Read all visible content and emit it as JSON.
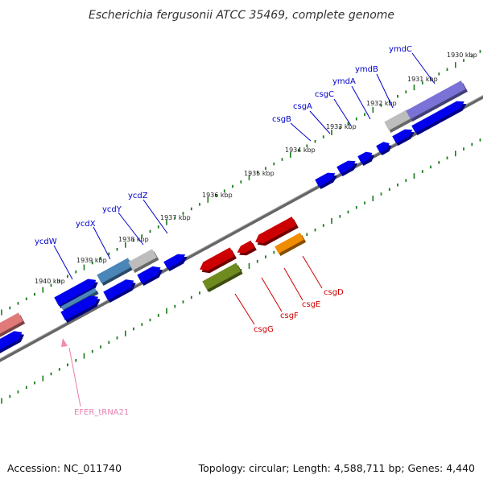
{
  "title": "Escherichia fergusonii ATCC 35469, complete genome",
  "footer": {
    "accession": "Accession: NC_011740",
    "summary": "Topology: circular; Length: 4,588,711 bp; Genes: 4,440"
  },
  "colors": {
    "backbone": "#777777",
    "ticks": "#1a7a1a",
    "cds": "#0000ee",
    "rna": "#cc0000",
    "trna": "#f08cb4",
    "gray_feature": "#bdbdbd",
    "purple_feature": "#7a72d6",
    "steel_feature": "#4a86b8",
    "orange_feature": "#f08c00",
    "olive_feature": "#6f8a1e",
    "top_label": "#0000cc",
    "bottom_label": "#cc0000",
    "trna_label": "#e87fb0"
  },
  "scale": {
    "unit": "kbp",
    "labels": [
      "1930 kbp",
      "1931 kbp",
      "1932 kbp",
      "1933 kbp",
      "1934 kbp",
      "1935 kbp",
      "1936 kbp",
      "1937 kbp",
      "1938 kbp",
      "1939 kbp",
      "1940 kbp"
    ]
  },
  "gene_labels_top": [
    "ymdC",
    "ymdB",
    "ymdA",
    "csgC",
    "csgA",
    "csgB",
    "ycdZ",
    "ycdY",
    "ycdX",
    "ycdW"
  ],
  "gene_labels_bottom": [
    "csgD",
    "csgE",
    "csgF",
    "csgG"
  ],
  "gene_labels_other": [
    "EFER_tRNA21"
  ]
}
